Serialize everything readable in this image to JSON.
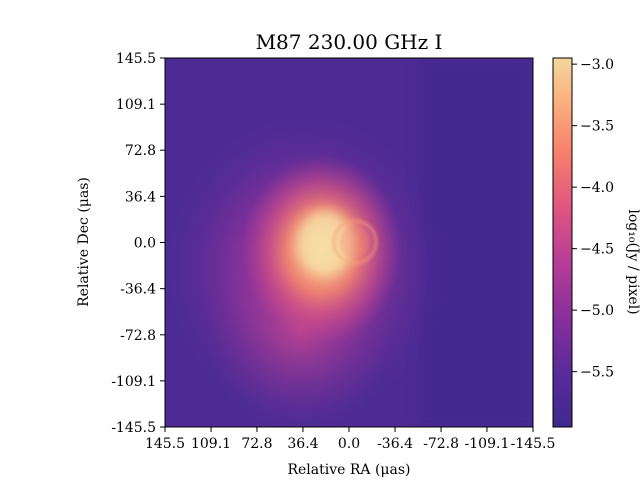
{
  "chart_data": {
    "type": "heatmap",
    "title": "M87 230.00 GHz I",
    "xlabel": "Relative RA (μas)",
    "ylabel": "Relative Dec (μas)",
    "xlim": [
      145.5,
      -145.5
    ],
    "ylim": [
      -145.5,
      145.5
    ],
    "x_ticks": [
      "145.5",
      "109.1",
      "72.8",
      "36.4",
      "0.0",
      "-36.4",
      "-72.8",
      "-109.1",
      "-145.5"
    ],
    "y_ticks": [
      "145.5",
      "109.1",
      "72.8",
      "36.4",
      "0.0",
      "-36.4",
      "-72.8",
      "-109.1",
      "-145.5"
    ],
    "x_tick_values": [
      145.5,
      109.1,
      72.8,
      36.4,
      0.0,
      -36.4,
      -72.8,
      -109.1,
      -145.5
    ],
    "y_tick_values": [
      145.5,
      109.1,
      72.8,
      36.4,
      0.0,
      -36.4,
      -72.8,
      -109.1,
      -145.5
    ],
    "colorbar": {
      "label": "log₁₀(Jy / pixel)",
      "range": [
        -5.95,
        -2.95
      ],
      "ticks": [
        "−3.0",
        "−3.5",
        "−4.0",
        "−4.5",
        "−5.0",
        "−5.5"
      ],
      "tick_values": [
        -3.0,
        -3.5,
        -4.0,
        -4.5,
        -5.0,
        -5.5
      ],
      "colormap": "magma-like",
      "stops": [
        "#3e2a8c",
        "#7a2a9a",
        "#b63a98",
        "#e5577e",
        "#f98b6b",
        "#fbc58a",
        "#f4d9a0"
      ]
    },
    "features": {
      "peak_location_muas": [
        25,
        0
      ],
      "ring_center_muas": [
        -5,
        0
      ],
      "ring_radius_muas": 20,
      "peak_value": -3.0,
      "background_value": -5.95
    }
  }
}
